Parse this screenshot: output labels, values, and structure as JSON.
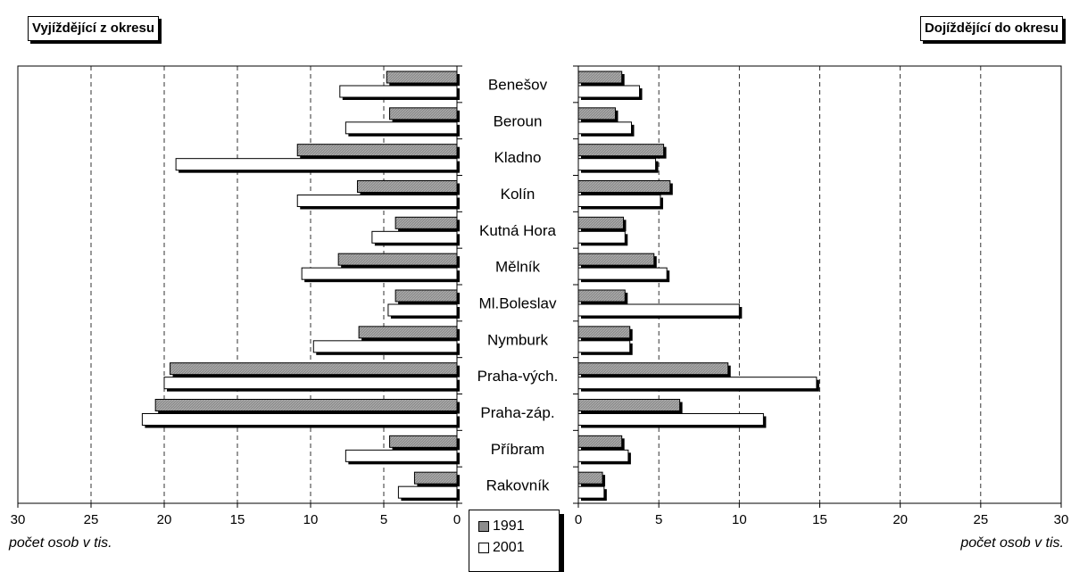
{
  "panels": {
    "left_title": "Vyjíždějící z okresu",
    "right_title": "Dojíždějící do okresu"
  },
  "axis": {
    "left_label": "počet osob v tis.",
    "right_label": "počet osob v tis."
  },
  "legend": {
    "items": [
      "1991",
      "2001"
    ]
  },
  "colors": {
    "series_1991": "#8c8c8c",
    "series_2001": "#ffffff",
    "shadow": "#000000",
    "grid": "#000000"
  },
  "chart_data": [
    {
      "type": "bar",
      "orientation": "horizontal",
      "direction": "leftward",
      "title": "Vyjíždějící z okresu",
      "xlabel": "počet osob v tis.",
      "xlim": [
        0,
        30
      ],
      "xticks": [
        0,
        5,
        10,
        15,
        20,
        25,
        30
      ],
      "grid": "vertical dashed",
      "categories": [
        "Benešov",
        "Beroun",
        "Kladno",
        "Kolín",
        "Kutná Hora",
        "Mělník",
        "Ml.Boleslav",
        "Nymburk",
        "Praha-vých.",
        "Praha-záp.",
        "Příbram",
        "Rakovník"
      ],
      "series": [
        {
          "name": "1991",
          "values": [
            4.8,
            4.6,
            10.9,
            6.8,
            4.2,
            8.1,
            4.2,
            6.7,
            19.6,
            20.6,
            4.6,
            2.9
          ]
        },
        {
          "name": "2001",
          "values": [
            8.0,
            7.6,
            19.2,
            10.9,
            5.8,
            10.6,
            4.7,
            9.8,
            20.0,
            21.5,
            7.6,
            4.0
          ]
        }
      ]
    },
    {
      "type": "bar",
      "orientation": "horizontal",
      "direction": "rightward",
      "title": "Dojíždějící do okresu",
      "xlabel": "počet osob v tis.",
      "xlim": [
        0,
        30
      ],
      "xticks": [
        0,
        5,
        10,
        15,
        20,
        25,
        30
      ],
      "grid": "vertical dashed",
      "categories": [
        "Benešov",
        "Beroun",
        "Kladno",
        "Kolín",
        "Kutná Hora",
        "Mělník",
        "Ml.Boleslav",
        "Nymburk",
        "Praha-vých.",
        "Praha-záp.",
        "Příbram",
        "Rakovník"
      ],
      "series": [
        {
          "name": "1991",
          "values": [
            2.7,
            2.3,
            5.3,
            5.7,
            2.8,
            4.7,
            2.9,
            3.2,
            9.3,
            6.3,
            2.7,
            1.5
          ]
        },
        {
          "name": "2001",
          "values": [
            3.8,
            3.3,
            4.8,
            5.1,
            2.9,
            5.5,
            10.0,
            3.2,
            14.8,
            11.5,
            3.1,
            1.6
          ]
        }
      ]
    }
  ]
}
